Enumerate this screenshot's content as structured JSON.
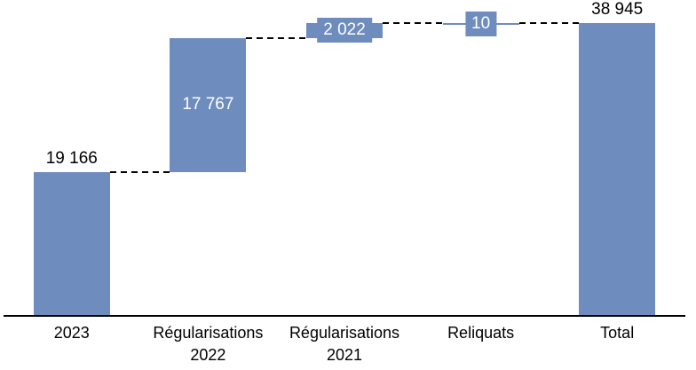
{
  "chart_data": {
    "type": "bar",
    "subtype": "waterfall",
    "title": "",
    "categories": [
      "2023",
      "Régularisations\n2022",
      "Régularisations\n2021",
      "Reliquats",
      "Total"
    ],
    "bars": [
      {
        "category": "2023",
        "value": 19166,
        "label": "19 166",
        "kind": "start",
        "label_style": "above"
      },
      {
        "category": "Régularisations 2022",
        "value": 17767,
        "label": "17 767",
        "kind": "delta",
        "label_style": "inside"
      },
      {
        "category": "Régularisations 2021",
        "value": 2022,
        "label": "2 022",
        "kind": "delta",
        "label_style": "badge"
      },
      {
        "category": "Reliquats",
        "value": 10,
        "label": "10",
        "kind": "delta",
        "label_style": "badge"
      },
      {
        "category": "Total",
        "value": 38945,
        "label": "38 945",
        "kind": "total",
        "label_style": "above"
      }
    ],
    "ylim": [
      0,
      42000
    ],
    "grid": false,
    "legend": false,
    "connector_style": "dashed",
    "colors": {
      "bar": "#6E8CBE",
      "label_on_bar": "#FFFFFF",
      "label_outside": "#000000",
      "connector": "#000000",
      "axis": "#000000"
    }
  }
}
